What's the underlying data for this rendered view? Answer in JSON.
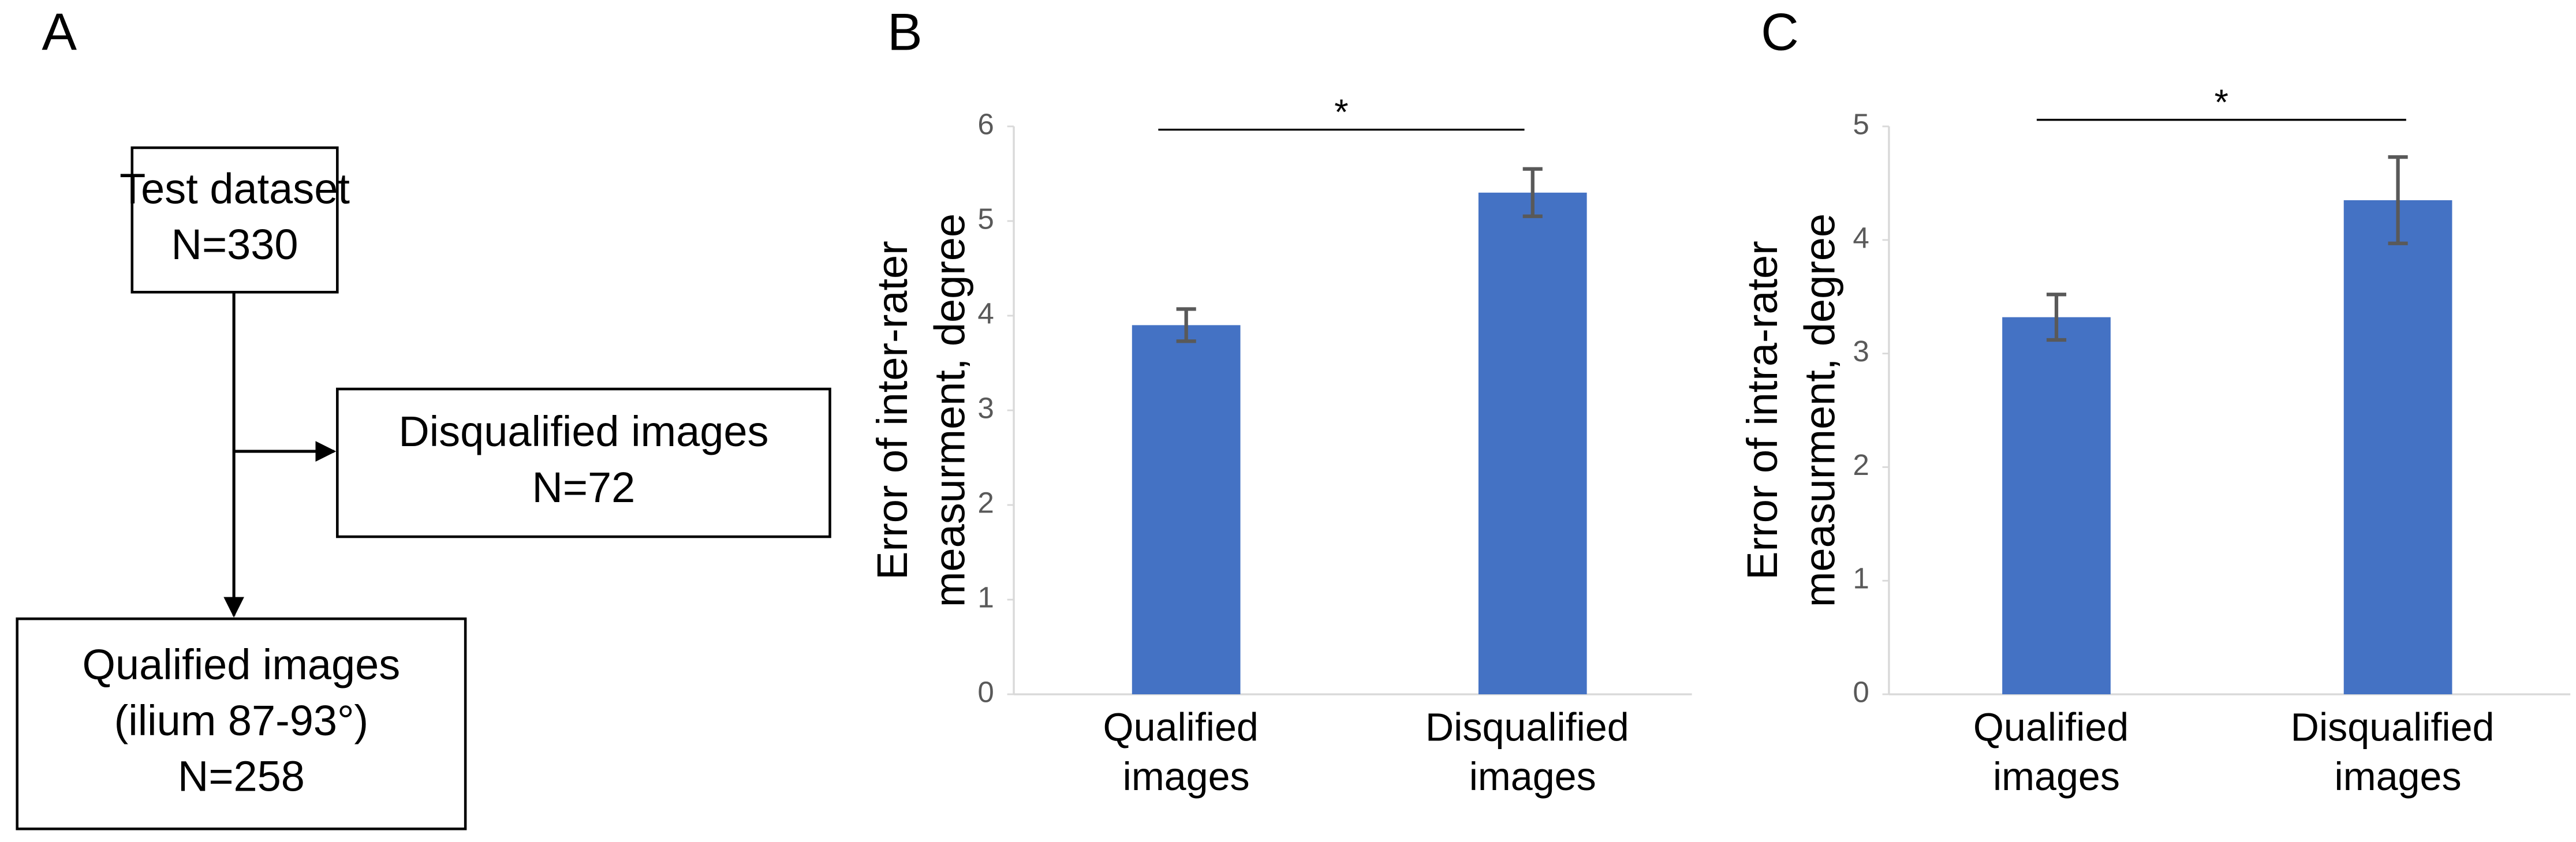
{
  "diagram": {
    "label": "A",
    "nodes": [
      {
        "lines": [
          "Test dataset",
          "N=330"
        ]
      },
      {
        "lines": [
          "Disqualified images",
          "N=72"
        ]
      },
      {
        "lines": [
          "Qualified images",
          "(ilium 87-93°)",
          "N=258"
        ]
      }
    ]
  },
  "chart_data": [
    {
      "type": "bar",
      "panel_label": "B",
      "ylabel": [
        "Error of inter-rater",
        "measurment, degree"
      ],
      "categories": [
        "Qualified images",
        "Disqualified images"
      ],
      "values": [
        3.9,
        5.3
      ],
      "errors": [
        0.17,
        0.25
      ],
      "color": "#4472c4",
      "ylim": [
        0,
        6
      ],
      "yticks": [
        0,
        1,
        2,
        3,
        4,
        5,
        6
      ],
      "annotation": "*"
    },
    {
      "type": "bar",
      "panel_label": "C",
      "ylabel": [
        "Error of intra-rater",
        "measurment, degree"
      ],
      "categories": [
        "Qualified images",
        "Disqualified images"
      ],
      "values": [
        3.32,
        4.35
      ],
      "errors": [
        0.2,
        0.38
      ],
      "color": "#4472c4",
      "ylim": [
        0,
        5
      ],
      "yticks": [
        0,
        1,
        2,
        3,
        4,
        5
      ],
      "annotation": "*"
    }
  ]
}
